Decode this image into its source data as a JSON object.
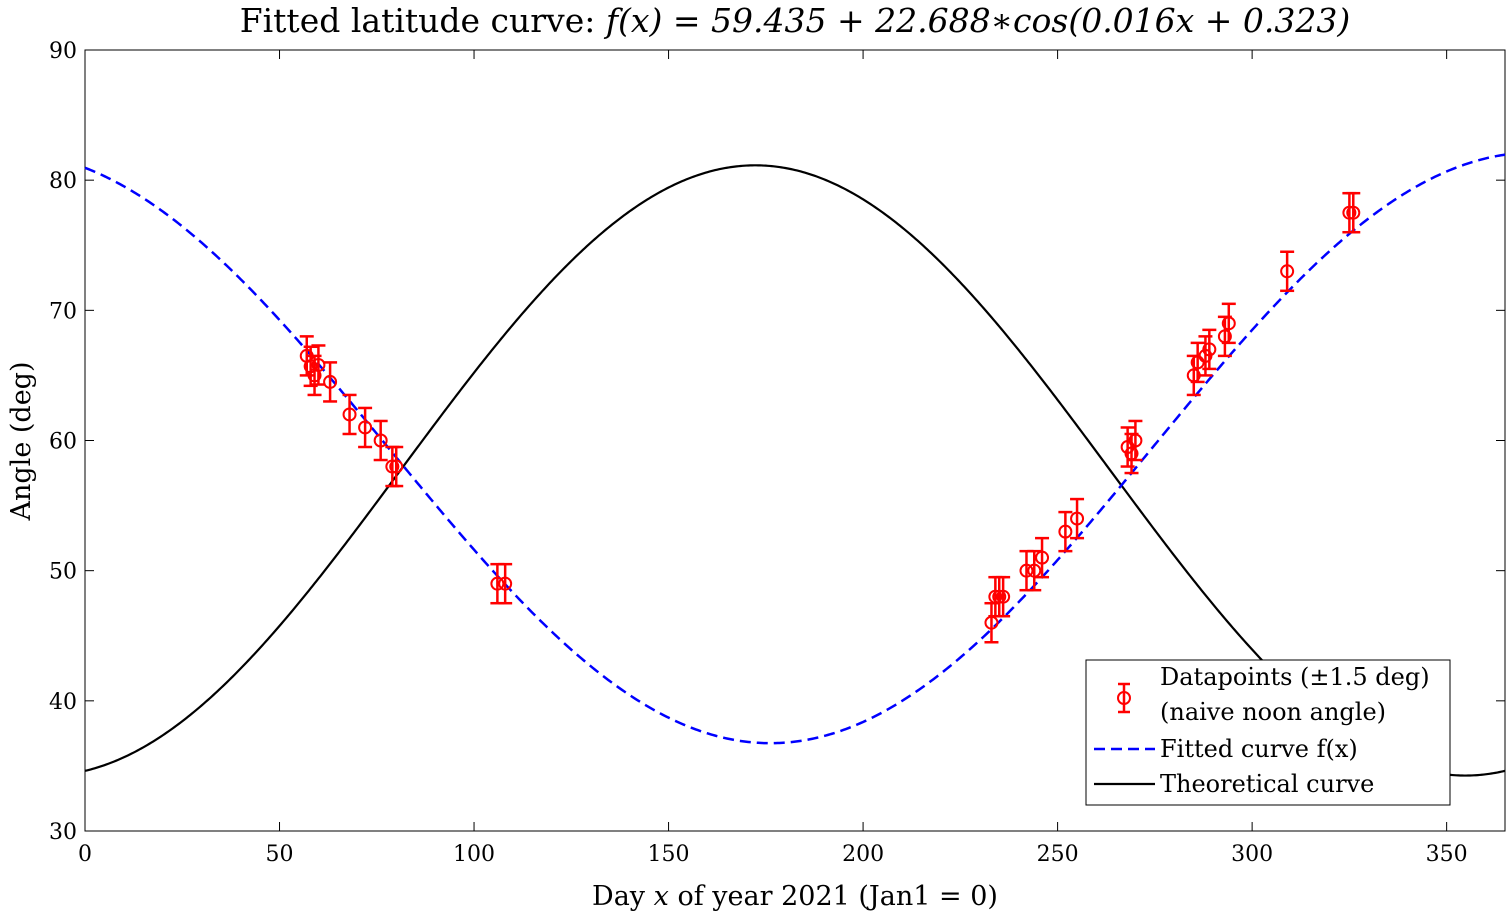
{
  "chart_data": {
    "type": "scatter",
    "title_prefix": "Fitted latitude curve: ",
    "title_formula": "f(x) = 59.435 + 22.688∗cos(0.016x + 0.323)",
    "xlabel_prefix": "Day ",
    "xlabel_var": "x",
    "xlabel_suffix": " of year 2021 (Jan1 = 0)",
    "ylabel": "Angle (deg)",
    "xlim": [
      0,
      365
    ],
    "ylim": [
      30,
      90
    ],
    "xticks": [
      0,
      50,
      100,
      150,
      200,
      250,
      300,
      350
    ],
    "yticks": [
      30,
      40,
      50,
      60,
      70,
      80,
      90
    ],
    "grid": false,
    "legend_position": "bottom-right",
    "colors": {
      "data": "#ff0000",
      "fit": "#0000ff",
      "theory": "#000000"
    },
    "series": [
      {
        "name": "Datapoints (±1.5 deg)",
        "name_line2": "(naive noon angle)",
        "kind": "errorbar",
        "error": 1.5,
        "x": [
          57,
          58,
          59,
          60,
          63,
          68,
          72,
          76,
          79,
          80,
          106,
          108,
          233,
          234,
          235,
          236,
          242,
          244,
          246,
          252,
          255,
          268,
          269,
          270,
          285,
          286,
          288,
          289,
          293,
          294,
          309,
          325,
          326
        ],
        "y": [
          66.5,
          65.7,
          65.0,
          65.8,
          64.5,
          62.0,
          61.0,
          60.0,
          58.0,
          58.0,
          49.0,
          49.0,
          46.0,
          48.0,
          48.0,
          48.0,
          50.0,
          50.0,
          51.0,
          53.0,
          54.0,
          59.5,
          59.0,
          60.0,
          65.0,
          66.0,
          66.5,
          67.0,
          68.0,
          69.0,
          73.0,
          77.5,
          77.5
        ]
      },
      {
        "name": "Fitted curve f(x)",
        "kind": "function",
        "style": "dashed",
        "formula": "59.435 + 22.688*cos(0.016x + 0.323)",
        "params": {
          "a": 59.435,
          "b": 22.688,
          "w": 0.016,
          "p": 0.323
        }
      },
      {
        "name": "Theoretical curve",
        "kind": "function",
        "style": "solid",
        "params": {
          "a": 57.7,
          "b": 23.44,
          "w": 0.017214,
          "p": -2.966
        }
      }
    ]
  }
}
